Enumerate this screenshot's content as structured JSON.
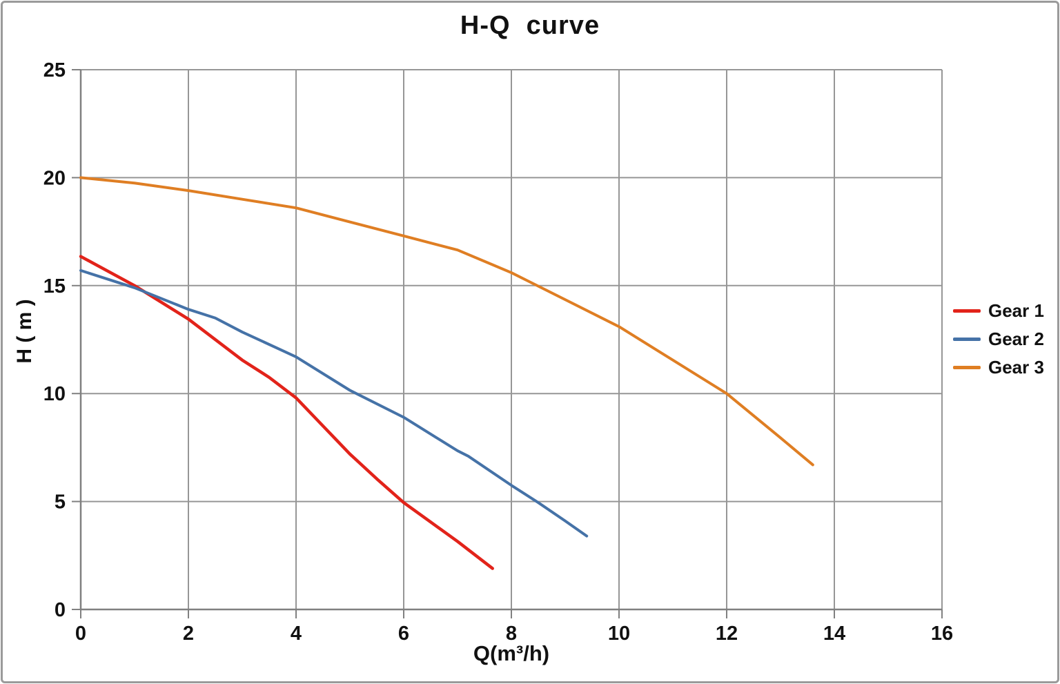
{
  "chart_data": {
    "type": "line",
    "title": "H-Q  curve",
    "xlabel": "Q(m³/h)",
    "ylabel": "H ( m )",
    "xlim": [
      0,
      16
    ],
    "ylim": [
      0,
      25
    ],
    "xticks": [
      0,
      2,
      4,
      6,
      8,
      10,
      12,
      14,
      16
    ],
    "yticks": [
      0,
      5,
      10,
      15,
      20,
      25
    ],
    "grid": true,
    "legend_position": "right",
    "colors": {
      "grid": "#969696",
      "axis": "#808080",
      "text": "#111111"
    },
    "series": [
      {
        "name": "Gear 1",
        "color": "#e2231a",
        "stroke_width": 4.5,
        "points": [
          [
            0,
            16.35
          ],
          [
            1,
            15.0
          ],
          [
            2,
            13.45
          ],
          [
            3,
            11.55
          ],
          [
            3.5,
            10.75
          ],
          [
            4,
            9.8
          ],
          [
            4.5,
            8.5
          ],
          [
            5,
            7.2
          ],
          [
            5.5,
            6.05
          ],
          [
            6,
            4.95
          ],
          [
            6.5,
            4.05
          ],
          [
            7,
            3.15
          ],
          [
            7.65,
            1.9
          ]
        ]
      },
      {
        "name": "Gear 2",
        "color": "#4572a7",
        "stroke_width": 4,
        "points": [
          [
            0,
            15.7
          ],
          [
            1,
            14.9
          ],
          [
            2,
            13.9
          ],
          [
            2.5,
            13.5
          ],
          [
            3,
            12.85
          ],
          [
            4,
            11.7
          ],
          [
            5,
            10.15
          ],
          [
            6,
            8.9
          ],
          [
            7,
            7.35
          ],
          [
            7.2,
            7.1
          ],
          [
            8,
            5.75
          ],
          [
            8.5,
            4.95
          ],
          [
            9,
            4.1
          ],
          [
            9.4,
            3.4
          ]
        ]
      },
      {
        "name": "Gear 3",
        "color": "#df7e23",
        "stroke_width": 4,
        "points": [
          [
            0,
            20.0
          ],
          [
            1,
            19.75
          ],
          [
            2,
            19.4
          ],
          [
            3,
            19.0
          ],
          [
            4,
            18.6
          ],
          [
            5,
            17.95
          ],
          [
            6,
            17.3
          ],
          [
            7,
            16.65
          ],
          [
            8,
            15.6
          ],
          [
            9,
            14.35
          ],
          [
            10,
            13.1
          ],
          [
            11,
            11.55
          ],
          [
            12,
            10.0
          ],
          [
            13,
            7.95
          ],
          [
            13.6,
            6.7
          ]
        ]
      }
    ]
  }
}
